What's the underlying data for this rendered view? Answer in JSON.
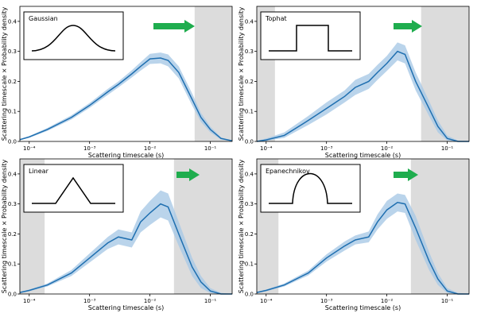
{
  "chart_data": [
    {
      "type": "line",
      "title": "Gaussian",
      "xlabel": "Scattering timescale (s)",
      "ylabel": "Scattering timescale × Probability density",
      "xscale": "log",
      "color": "#1f6fb0",
      "band_color": "#a9c9e6",
      "span_color": "#dcdcdc",
      "xlim": [
        7e-05,
        0.23
      ],
      "ylim": [
        0,
        0.45
      ],
      "xticks": [
        {
          "value": 0.0001,
          "label": "10⁻⁴"
        },
        {
          "value": 0.001,
          "label": "10⁻³"
        },
        {
          "value": 0.01,
          "label": "10⁻²"
        },
        {
          "value": 0.1,
          "label": "10⁻¹"
        }
      ],
      "yticks": [
        {
          "value": 0,
          "label": "0.0"
        },
        0.1,
        0.2,
        0.3,
        0.4
      ],
      "spans": [
        [
          0.055,
          0.23
        ]
      ],
      "x": [
        7e-05,
        0.0001,
        0.0002,
        0.0005,
        0.001,
        0.002,
        0.003,
        0.005,
        0.007,
        0.01,
        0.015,
        0.02,
        0.03,
        0.05,
        0.07,
        0.1,
        0.15,
        0.23
      ],
      "values": [
        0.006,
        0.015,
        0.04,
        0.08,
        0.12,
        0.165,
        0.19,
        0.225,
        0.25,
        0.275,
        0.278,
        0.27,
        0.23,
        0.14,
        0.08,
        0.04,
        0.01,
        0.002
      ],
      "lower": [
        0.004,
        0.012,
        0.035,
        0.073,
        0.112,
        0.155,
        0.18,
        0.213,
        0.236,
        0.258,
        0.26,
        0.25,
        0.21,
        0.12,
        0.065,
        0.03,
        0.006,
        0.001
      ],
      "upper": [
        0.008,
        0.018,
        0.045,
        0.087,
        0.128,
        0.175,
        0.2,
        0.237,
        0.264,
        0.292,
        0.296,
        0.29,
        0.25,
        0.16,
        0.095,
        0.05,
        0.014,
        0.003
      ]
    },
    {
      "type": "line",
      "title": "Tophat",
      "xlabel": "Scattering timescale (s)",
      "ylabel": "Scattering timescale × Probability density",
      "xscale": "log",
      "color": "#1f6fb0",
      "band_color": "#a9c9e6",
      "span_color": "#dcdcdc",
      "xlim": [
        7e-05,
        0.23
      ],
      "ylim": [
        0,
        0.45
      ],
      "xticks": [
        {
          "value": 0.0001,
          "label": "10⁻⁴"
        },
        {
          "value": 0.001,
          "label": "10⁻³"
        },
        {
          "value": 0.01,
          "label": "10⁻²"
        },
        {
          "value": 0.1,
          "label": "10⁻¹"
        }
      ],
      "yticks": [
        {
          "value": 0,
          "label": "0.0"
        },
        0.1,
        0.2,
        0.3,
        0.4
      ],
      "spans": [
        [
          7e-05,
          0.00014
        ],
        [
          0.037,
          0.23
        ]
      ],
      "x": [
        7e-05,
        0.0001,
        0.0002,
        0.0005,
        0.001,
        0.002,
        0.003,
        0.005,
        0.007,
        0.01,
        0.015,
        0.02,
        0.03,
        0.05,
        0.07,
        0.1,
        0.15,
        0.23
      ],
      "values": [
        0,
        0.005,
        0.02,
        0.07,
        0.11,
        0.15,
        0.18,
        0.2,
        0.23,
        0.26,
        0.3,
        0.29,
        0.2,
        0.11,
        0.05,
        0.01,
        0,
        0
      ],
      "lower": [
        0,
        0.002,
        0.012,
        0.055,
        0.09,
        0.13,
        0.155,
        0.175,
        0.205,
        0.235,
        0.27,
        0.26,
        0.17,
        0.085,
        0.03,
        0.003,
        0,
        0
      ],
      "upper": [
        0.002,
        0.01,
        0.03,
        0.085,
        0.13,
        0.17,
        0.205,
        0.225,
        0.255,
        0.285,
        0.33,
        0.32,
        0.23,
        0.135,
        0.07,
        0.02,
        0.003,
        0
      ]
    },
    {
      "type": "line",
      "title": "Linear",
      "xlabel": "Scattering timescale (s)",
      "ylabel": "Scattering timescale × Probability density",
      "xscale": "log",
      "color": "#1f6fb0",
      "band_color": "#a9c9e6",
      "span_color": "#dcdcdc",
      "xlim": [
        7e-05,
        0.23
      ],
      "ylim": [
        0,
        0.45
      ],
      "xticks": [
        {
          "value": 0.0001,
          "label": "10⁻⁴"
        },
        {
          "value": 0.001,
          "label": "10⁻³"
        },
        {
          "value": 0.01,
          "label": "10⁻²"
        },
        {
          "value": 0.1,
          "label": "10⁻¹"
        }
      ],
      "yticks": [
        {
          "value": 0,
          "label": "0.0"
        },
        0.1,
        0.2,
        0.3,
        0.4
      ],
      "spans": [
        [
          7e-05,
          0.00018
        ],
        [
          0.025,
          0.23
        ]
      ],
      "x": [
        7e-05,
        0.0001,
        0.0002,
        0.0005,
        0.001,
        0.002,
        0.003,
        0.005,
        0.007,
        0.01,
        0.015,
        0.02,
        0.03,
        0.05,
        0.07,
        0.1,
        0.15,
        0.23
      ],
      "values": [
        0.005,
        0.012,
        0.03,
        0.07,
        0.12,
        0.17,
        0.19,
        0.18,
        0.24,
        0.27,
        0.3,
        0.29,
        0.2,
        0.09,
        0.04,
        0.01,
        0,
        0
      ],
      "lower": [
        0.003,
        0.009,
        0.025,
        0.06,
        0.105,
        0.15,
        0.165,
        0.155,
        0.205,
        0.23,
        0.255,
        0.245,
        0.16,
        0.06,
        0.02,
        0.003,
        0,
        0
      ],
      "upper": [
        0.007,
        0.015,
        0.035,
        0.08,
        0.135,
        0.19,
        0.215,
        0.205,
        0.275,
        0.31,
        0.345,
        0.335,
        0.24,
        0.12,
        0.06,
        0.02,
        0.004,
        0
      ]
    },
    {
      "type": "line",
      "title": "Epanechnikov",
      "xlabel": "Scattering timescale (s)",
      "ylabel": "Scattering timescale × Probability density",
      "xscale": "log",
      "color": "#1f6fb0",
      "band_color": "#a9c9e6",
      "span_color": "#dcdcdc",
      "xlim": [
        7e-05,
        0.23
      ],
      "ylim": [
        0,
        0.45
      ],
      "xticks": [
        {
          "value": 0.0001,
          "label": "10⁻⁴"
        },
        {
          "value": 0.001,
          "label": "10⁻³"
        },
        {
          "value": 0.01,
          "label": "10⁻²"
        },
        {
          "value": 0.1,
          "label": "10⁻¹"
        }
      ],
      "yticks": [
        {
          "value": 0,
          "label": "0.0"
        },
        0.1,
        0.2,
        0.3,
        0.4
      ],
      "spans": [
        [
          7e-05,
          0.00016
        ],
        [
          0.025,
          0.23
        ]
      ],
      "x": [
        7e-05,
        0.0001,
        0.0002,
        0.0005,
        0.001,
        0.002,
        0.003,
        0.005,
        0.007,
        0.01,
        0.015,
        0.02,
        0.03,
        0.05,
        0.07,
        0.1,
        0.15,
        0.23
      ],
      "values": [
        0.005,
        0.012,
        0.03,
        0.07,
        0.12,
        0.16,
        0.18,
        0.19,
        0.24,
        0.28,
        0.305,
        0.3,
        0.22,
        0.11,
        0.05,
        0.01,
        0,
        0
      ],
      "lower": [
        0.003,
        0.009,
        0.025,
        0.062,
        0.108,
        0.145,
        0.165,
        0.172,
        0.215,
        0.25,
        0.275,
        0.27,
        0.18,
        0.08,
        0.03,
        0.003,
        0,
        0
      ],
      "upper": [
        0.007,
        0.015,
        0.035,
        0.078,
        0.132,
        0.175,
        0.195,
        0.208,
        0.265,
        0.31,
        0.335,
        0.33,
        0.26,
        0.14,
        0.07,
        0.02,
        0.004,
        0
      ]
    }
  ]
}
